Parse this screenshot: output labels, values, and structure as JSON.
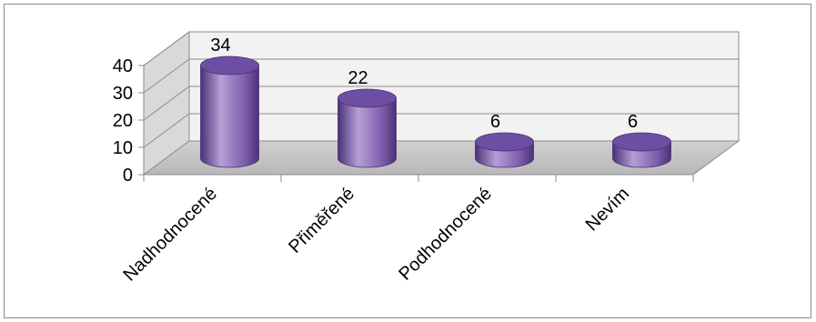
{
  "chart_data": {
    "type": "bar",
    "subtype": "3d-cylinder",
    "categories": [
      "Nadhodnocené",
      "Přiměřené",
      "Podhodnocené",
      "Nevím"
    ],
    "values": [
      34,
      22,
      6,
      6
    ],
    "data_labels": [
      "34",
      "22",
      "6",
      "6"
    ],
    "title": "",
    "xlabel": "",
    "ylabel": "",
    "ylim": [
      0,
      40
    ],
    "yticks": [
      0,
      10,
      20,
      30,
      40
    ],
    "grid": true,
    "legend": "none",
    "colors": {
      "bar_fill": "#7f5fae",
      "bar_light": "#b59fd6",
      "bar_dark": "#4b3176",
      "bar_top": "#6e4ea3",
      "floor": "#c6c6c6",
      "back_wall": "#f2f2f2",
      "side_wall": "#d9d9d9",
      "grid": "#8c8c8c"
    }
  }
}
